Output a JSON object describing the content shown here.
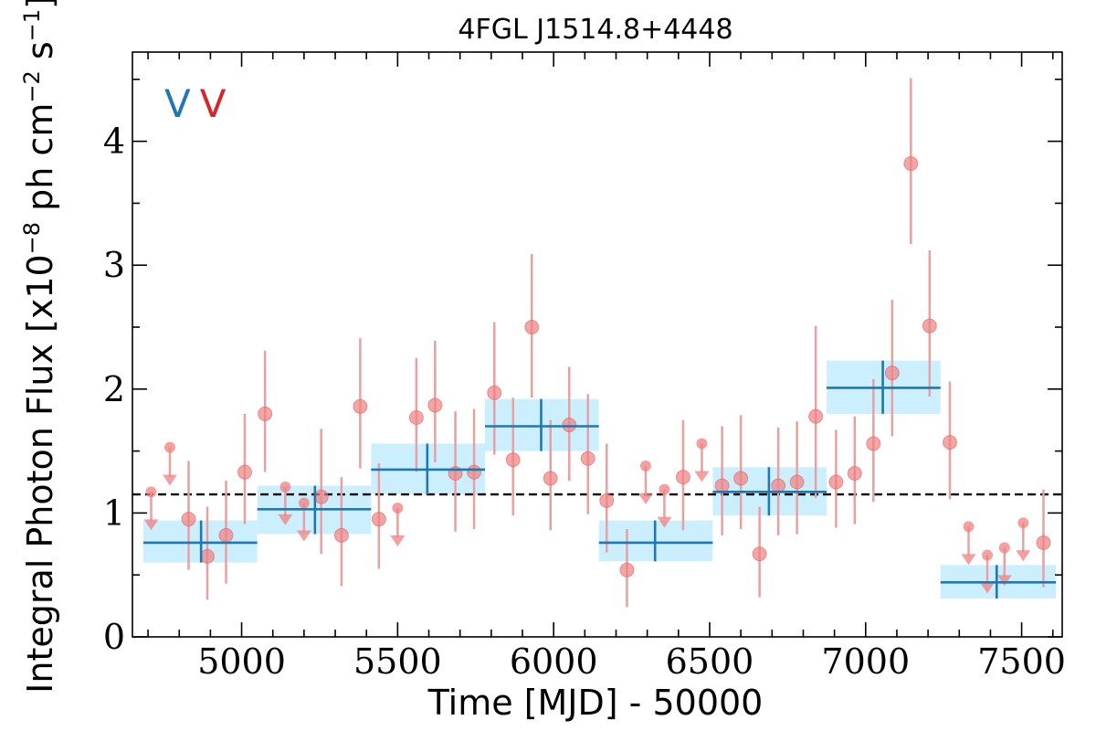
{
  "chart_data": {
    "type": "scatter",
    "title": "4FGL J1514.8+4448",
    "xlabel": "Time [MJD] - 50000",
    "ylabel": {
      "base": "Integral Photon Flux [x10",
      "exp1": "−8",
      "mid": " ph cm",
      "exp2": "−2",
      "mid2": " s",
      "exp3": "−1",
      "end": "]"
    },
    "xlim": [
      4650,
      7630
    ],
    "ylim": [
      0,
      4.72
    ],
    "x_ticks": [
      5000,
      5500,
      6000,
      6500,
      7000,
      7500
    ],
    "x_tick_labels": [
      "5000",
      "5500",
      "6000",
      "6500",
      "7000",
      "7500"
    ],
    "y_ticks": [
      0,
      1,
      2,
      3,
      4
    ],
    "y_tick_labels": [
      "0",
      "1",
      "2",
      "3",
      "4"
    ],
    "mean_flux": 1.15,
    "legend": {
      "text": "V",
      "colors": [
        "#1f77b4",
        "#d62728"
      ],
      "position": "top-left"
    },
    "colors": {
      "bins": "#1f77b4",
      "bin_band": "#ccefff",
      "points": "#f08080",
      "errors": "#e8a0a0",
      "mean": "#000000"
    },
    "series": [
      {
        "name": "",
        "kind": "binned",
        "bins": [
          {
            "x": 4870,
            "x0": 4685,
            "x1": 5050,
            "y": 0.76,
            "y0": 0.6,
            "y1": 0.94
          },
          {
            "x": 5235,
            "x0": 5050,
            "x1": 5415,
            "y": 1.03,
            "y0": 0.83,
            "y1": 1.22
          },
          {
            "x": 5595,
            "x0": 5415,
            "x1": 5780,
            "y": 1.35,
            "y0": 1.15,
            "y1": 1.56
          },
          {
            "x": 5960,
            "x0": 5780,
            "x1": 6145,
            "y": 1.7,
            "y0": 1.5,
            "y1": 1.92
          },
          {
            "x": 6325,
            "x0": 6145,
            "x1": 6510,
            "y": 0.76,
            "y0": 0.61,
            "y1": 0.94
          },
          {
            "x": 6690,
            "x0": 6510,
            "x1": 6875,
            "y": 1.17,
            "y0": 0.98,
            "y1": 1.37
          },
          {
            "x": 7055,
            "x0": 6875,
            "x1": 7240,
            "y": 2.01,
            "y0": 1.8,
            "y1": 2.23
          },
          {
            "x": 7420,
            "x0": 7240,
            "x1": 7610,
            "y": 0.44,
            "y0": 0.31,
            "y1": 0.58
          }
        ]
      },
      {
        "name": "",
        "kind": "points",
        "points": [
          {
            "x": 4710,
            "y": 1.17,
            "ul": true
          },
          {
            "x": 4770,
            "y": 1.53,
            "ul": true
          },
          {
            "x": 4830,
            "y": 0.95,
            "y0": 0.54,
            "y1": 1.42
          },
          {
            "x": 4890,
            "y": 0.65,
            "y0": 0.3,
            "y1": 1.05
          },
          {
            "x": 4950,
            "y": 0.82,
            "y0": 0.43,
            "y1": 1.26
          },
          {
            "x": 5010,
            "y": 1.33,
            "y0": 0.91,
            "y1": 1.8
          },
          {
            "x": 5075,
            "y": 1.8,
            "y0": 1.33,
            "y1": 2.31
          },
          {
            "x": 5140,
            "y": 1.21,
            "ul": true
          },
          {
            "x": 5200,
            "y": 1.08,
            "ul": true
          },
          {
            "x": 5255,
            "y": 1.13,
            "y0": 0.67,
            "y1": 1.68
          },
          {
            "x": 5320,
            "y": 0.82,
            "y0": 0.41,
            "y1": 1.29
          },
          {
            "x": 5380,
            "y": 1.86,
            "y0": 1.36,
            "y1": 2.41
          },
          {
            "x": 5440,
            "y": 0.95,
            "y0": 0.55,
            "y1": 1.4
          },
          {
            "x": 5500,
            "y": 1.04,
            "ul": true
          },
          {
            "x": 5560,
            "y": 1.77,
            "y0": 1.33,
            "y1": 2.25
          },
          {
            "x": 5620,
            "y": 1.87,
            "y0": 1.41,
            "y1": 2.39
          },
          {
            "x": 5685,
            "y": 1.32,
            "y0": 0.85,
            "y1": 1.82
          },
          {
            "x": 5745,
            "y": 1.33,
            "y0": 0.87,
            "y1": 1.84
          },
          {
            "x": 5810,
            "y": 1.97,
            "y0": 1.47,
            "y1": 2.54
          },
          {
            "x": 5870,
            "y": 1.43,
            "y0": 0.98,
            "y1": 1.93
          },
          {
            "x": 5930,
            "y": 2.5,
            "y0": 1.93,
            "y1": 3.09
          },
          {
            "x": 5990,
            "y": 1.28,
            "y0": 0.86,
            "y1": 1.75
          },
          {
            "x": 6050,
            "y": 1.71,
            "y0": 1.26,
            "y1": 2.18
          },
          {
            "x": 6110,
            "y": 1.44,
            "y0": 0.99,
            "y1": 1.96
          },
          {
            "x": 6170,
            "y": 1.1,
            "y0": 0.68,
            "y1": 1.56
          },
          {
            "x": 6235,
            "y": 0.54,
            "y0": 0.24,
            "y1": 0.87
          },
          {
            "x": 6295,
            "y": 1.38,
            "ul": true
          },
          {
            "x": 6355,
            "y": 1.19,
            "ul": true
          },
          {
            "x": 6415,
            "y": 1.29,
            "y0": 0.86,
            "y1": 1.75
          },
          {
            "x": 6475,
            "y": 1.56,
            "ul": true
          },
          {
            "x": 6540,
            "y": 1.22,
            "y0": 0.82,
            "y1": 1.7
          },
          {
            "x": 6600,
            "y": 1.28,
            "y0": 0.87,
            "y1": 1.79
          },
          {
            "x": 6660,
            "y": 0.67,
            "y0": 0.32,
            "y1": 1.05
          },
          {
            "x": 6720,
            "y": 1.22,
            "y0": 0.82,
            "y1": 1.69
          },
          {
            "x": 6780,
            "y": 1.25,
            "y0": 0.83,
            "y1": 1.74
          },
          {
            "x": 6840,
            "y": 1.78,
            "y0": 1.12,
            "y1": 2.51
          },
          {
            "x": 6905,
            "y": 1.25,
            "y0": 0.88,
            "y1": 1.67
          },
          {
            "x": 6965,
            "y": 1.32,
            "y0": 0.91,
            "y1": 1.78
          },
          {
            "x": 7025,
            "y": 1.56,
            "y0": 1.09,
            "y1": 2.08
          },
          {
            "x": 7085,
            "y": 2.13,
            "y0": 1.62,
            "y1": 2.72
          },
          {
            "x": 7145,
            "y": 3.82,
            "y0": 3.17,
            "y1": 4.51
          },
          {
            "x": 7205,
            "y": 2.51,
            "y0": 1.94,
            "y1": 3.12
          },
          {
            "x": 7270,
            "y": 1.57,
            "y0": 1.11,
            "y1": 2.06
          },
          {
            "x": 7330,
            "y": 0.89,
            "ul": true
          },
          {
            "x": 7390,
            "y": 0.66,
            "ul": true
          },
          {
            "x": 7445,
            "y": 0.72,
            "ul": true
          },
          {
            "x": 7505,
            "y": 0.92,
            "ul": true
          },
          {
            "x": 7570,
            "y": 0.76,
            "y0": 0.4,
            "y1": 1.19
          }
        ]
      }
    ]
  }
}
